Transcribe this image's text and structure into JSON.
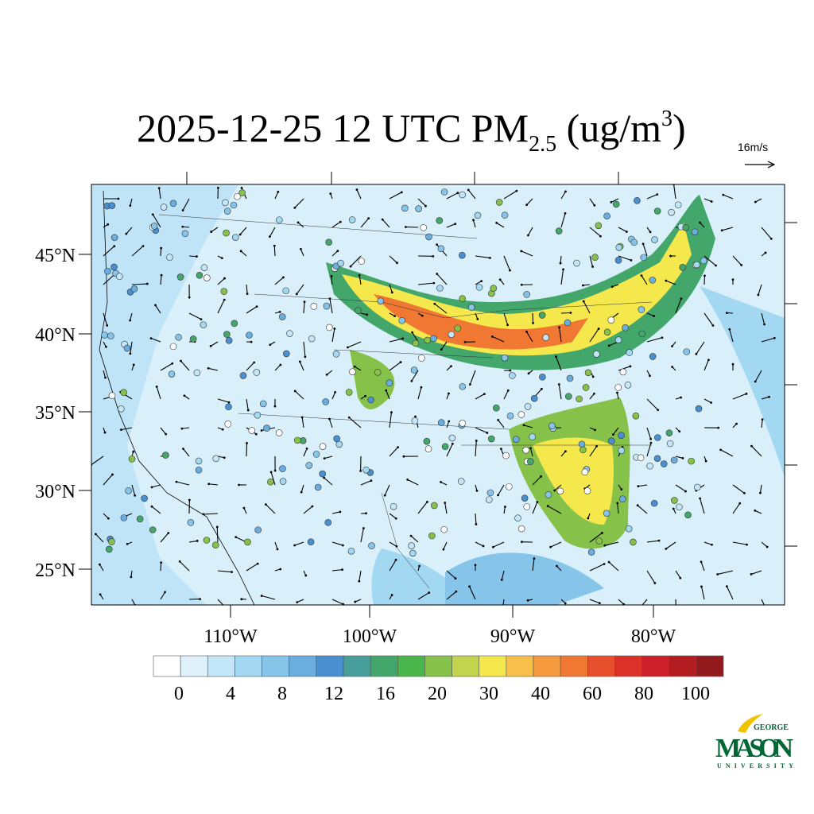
{
  "title": {
    "prefix": "2025-12-25 12 UTC PM",
    "subscript": "2.5",
    "middle": " (ug/m",
    "superscript": "3",
    "suffix": ")"
  },
  "vector_reference": "16m/s",
  "lat_labels": [
    "45°N",
    "40°N",
    "35°N",
    "30°N",
    "25°N"
  ],
  "lon_labels": [
    "110°W",
    "100°W",
    "90°W",
    "80°W"
  ],
  "colorbar": {
    "colors": [
      "#ffffff",
      "#dff1fb",
      "#c3e6f8",
      "#a3d8f3",
      "#86c4ea",
      "#6aaedf",
      "#4a8fcf",
      "#479e9a",
      "#43a66b",
      "#4ab54a",
      "#86c24a",
      "#c2d44e",
      "#f5e84d",
      "#f8c04a",
      "#f59a3f",
      "#f07832",
      "#e8502d",
      "#dc3128",
      "#cc1f2a",
      "#b31d22",
      "#921a1c"
    ],
    "ticks": [
      0,
      4,
      8,
      12,
      16,
      20,
      30,
      40,
      60,
      80,
      100
    ]
  },
  "logo": {
    "top": "GEORGE",
    "main": "MASON",
    "bottom": "UNIVERSITY"
  }
}
